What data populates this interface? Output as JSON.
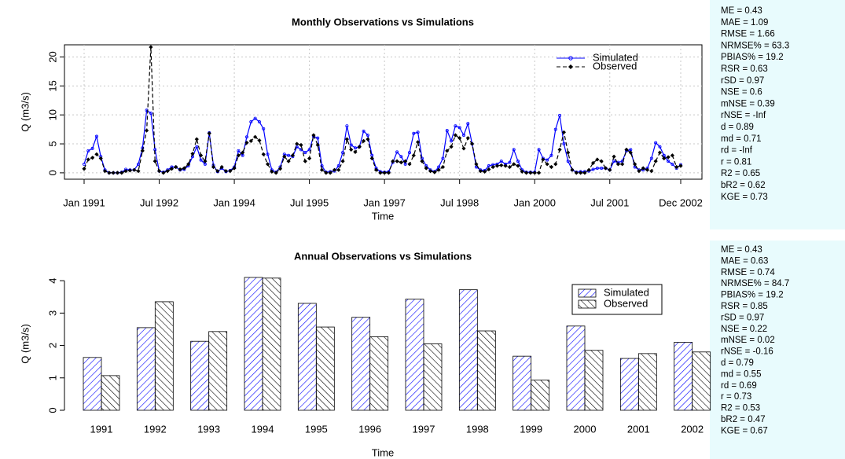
{
  "chart_data": [
    {
      "type": "line",
      "title": "Monthly Observations vs Simulations",
      "xlabel": "Time",
      "ylabel": "Q (m3/s)",
      "x": [
        "1991-01",
        "1991-02",
        "1991-03",
        "1991-04",
        "1991-05",
        "1991-06",
        "1991-07",
        "1991-08",
        "1991-09",
        "1991-10",
        "1991-11",
        "1991-12",
        "1992-01",
        "1992-02",
        "1992-03",
        "1992-04",
        "1992-05",
        "1992-06",
        "1992-07",
        "1992-08",
        "1992-09",
        "1992-10",
        "1992-11",
        "1992-12",
        "1993-01",
        "1993-02",
        "1993-03",
        "1993-04",
        "1993-05",
        "1993-06",
        "1993-07",
        "1993-08",
        "1993-09",
        "1993-10",
        "1993-11",
        "1993-12",
        "1994-01",
        "1994-02",
        "1994-03",
        "1994-04",
        "1994-05",
        "1994-06",
        "1994-07",
        "1994-08",
        "1994-09",
        "1994-10",
        "1994-11",
        "1994-12",
        "1995-01",
        "1995-02",
        "1995-03",
        "1995-04",
        "1995-05",
        "1995-06",
        "1995-07",
        "1995-08",
        "1995-09",
        "1995-10",
        "1995-11",
        "1995-12",
        "1996-01",
        "1996-02",
        "1996-03",
        "1996-04",
        "1996-05",
        "1996-06",
        "1996-07",
        "1996-08",
        "1996-09",
        "1996-10",
        "1996-11",
        "1996-12",
        "1997-01",
        "1997-02",
        "1997-03",
        "1997-04",
        "1997-05",
        "1997-06",
        "1997-07",
        "1997-08",
        "1997-09",
        "1997-10",
        "1997-11",
        "1997-12",
        "1998-01",
        "1998-02",
        "1998-03",
        "1998-04",
        "1998-05",
        "1998-06",
        "1998-07",
        "1998-08",
        "1998-09",
        "1998-10",
        "1998-11",
        "1998-12",
        "1999-01",
        "1999-02",
        "1999-03",
        "1999-04",
        "1999-05",
        "1999-06",
        "1999-07",
        "1999-08",
        "1999-09",
        "1999-10",
        "1999-11",
        "1999-12",
        "2000-01",
        "2000-02",
        "2000-03",
        "2000-04",
        "2000-05",
        "2000-06",
        "2000-07",
        "2000-08",
        "2000-09",
        "2000-10",
        "2000-11",
        "2000-12",
        "2001-01",
        "2001-02",
        "2001-03",
        "2001-04",
        "2001-05",
        "2001-06",
        "2001-07",
        "2001-08",
        "2001-09",
        "2001-10",
        "2001-11",
        "2001-12",
        "2002-01",
        "2002-02",
        "2002-03",
        "2002-04",
        "2002-05",
        "2002-06",
        "2002-07",
        "2002-08",
        "2002-09",
        "2002-10",
        "2002-11",
        "2002-12"
      ],
      "series": [
        {
          "name": "Simulated",
          "color": "#0000ff",
          "linestyle": "solid",
          "marker": "circle",
          "values": [
            1.5,
            3.8,
            4.2,
            6.3,
            2.8,
            0.5,
            0,
            0,
            0,
            0.1,
            0.6,
            0.5,
            0.5,
            1.5,
            4.3,
            10.8,
            10.3,
            4.0,
            0.3,
            0.1,
            0.5,
            1.0,
            1.0,
            0.5,
            0.6,
            1.2,
            2.8,
            4.5,
            2.2,
            1.5,
            6.9,
            1.3,
            0.2,
            0.8,
            0.2,
            0.4,
            1.0,
            3.8,
            3.0,
            6.2,
            8.8,
            9.4,
            8.8,
            7.6,
            3.2,
            0.5,
            0.1,
            1.0,
            3.2,
            3.0,
            2.8,
            4.5,
            4.0,
            3.5,
            4.0,
            6.3,
            6.0,
            1.2,
            0.1,
            0.2,
            0.3,
            1.2,
            3.5,
            8.1,
            4.8,
            4.3,
            4.5,
            7.2,
            6.5,
            3.0,
            0.8,
            0.2,
            0.1,
            0.2,
            1.8,
            3.6,
            2.8,
            1.5,
            3.5,
            6.8,
            7.0,
            2.5,
            1.2,
            0.5,
            0.2,
            1.0,
            2.5,
            7.3,
            5.5,
            8.1,
            7.8,
            6.5,
            8.5,
            5.0,
            1.0,
            0.5,
            0.4,
            1.2,
            1.4,
            1.5,
            2.0,
            1.5,
            1.8,
            4.0,
            2.0,
            0.5,
            0.1,
            0.1,
            0.1,
            4.0,
            2.5,
            2.2,
            3.0,
            7.5,
            9.9,
            5.0,
            2.0,
            0.5,
            0.1,
            0.2,
            0.2,
            0.3,
            0.6,
            0.8,
            0.8,
            0.8,
            0.5,
            2.0,
            1.8,
            2.0,
            3.8,
            4.0,
            1.0,
            0.5,
            0.5,
            0.8,
            2.5,
            5.2,
            4.5,
            3.0,
            2.0,
            1.5,
            0.8,
            1.4
          ]
        },
        {
          "name": "Observed",
          "color": "#000000",
          "linestyle": "dashed",
          "marker": "diamond",
          "values": [
            0.7,
            2.3,
            2.6,
            3.2,
            2.5,
            0.3,
            0,
            0,
            0,
            0,
            0.3,
            0.4,
            0.5,
            0.3,
            3.8,
            7.3,
            21.7,
            2.0,
            0.3,
            0,
            0.3,
            0.7,
            1.0,
            0.6,
            0.8,
            1.5,
            3.3,
            5.8,
            3.0,
            2.0,
            6.8,
            1.0,
            0.3,
            1.0,
            0.3,
            0.3,
            0.8,
            3.0,
            3.5,
            5.2,
            5.5,
            6.2,
            5.6,
            3.2,
            1.5,
            0.2,
            0,
            0.7,
            2.8,
            2.0,
            3.0,
            5.0,
            4.8,
            2.0,
            2.5,
            6.5,
            4.8,
            0.5,
            0,
            0,
            0.5,
            0.5,
            2.0,
            5.8,
            4.0,
            3.6,
            4.5,
            5.5,
            5.8,
            2.5,
            0.5,
            0,
            0,
            0,
            2.0,
            2.0,
            1.8,
            2.0,
            1.5,
            3.0,
            5.3,
            2.0,
            0.8,
            0.3,
            0.1,
            0.5,
            1.0,
            3.8,
            4.5,
            6.5,
            6.0,
            4.2,
            6.0,
            5.0,
            1.5,
            0.3,
            0.2,
            0.6,
            1.0,
            1.2,
            1.3,
            1.2,
            1.0,
            1.5,
            1.2,
            0.2,
            0,
            0,
            0,
            0,
            2.3,
            1.5,
            1.0,
            1.5,
            4.0,
            7.0,
            3.5,
            0.5,
            0,
            0,
            0,
            0.5,
            1.7,
            2.3,
            2.0,
            0.8,
            0.5,
            2.8,
            1.5,
            1.5,
            4.0,
            3.5,
            1.5,
            0.3,
            0.8,
            0.5,
            0.3,
            2.0,
            3.5,
            2.5,
            2.7,
            3.0,
            1.0,
            1.2
          ]
        }
      ],
      "xlim": [
        "1991-01",
        "2002-12"
      ],
      "xticks": [
        {
          "value": "1991-01",
          "label": "Jan 1991"
        },
        {
          "value": "1992-07",
          "label": "Jul 1992"
        },
        {
          "value": "1994-01",
          "label": "Jan 1994"
        },
        {
          "value": "1995-07",
          "label": "Jul 1995"
        },
        {
          "value": "1997-01",
          "label": "Jan 1997"
        },
        {
          "value": "1998-07",
          "label": "Jul 1998"
        },
        {
          "value": "2000-01",
          "label": "Jan 2000"
        },
        {
          "value": "2001-07",
          "label": "Jul 2001"
        },
        {
          "value": "2002-12",
          "label": "Dec 2002"
        }
      ],
      "ylim": [
        -1.1,
        22.1
      ],
      "yticks": [
        0,
        5,
        10,
        15,
        20
      ],
      "grid": true,
      "legend": "top-right",
      "annotations": [
        "ME = 0.43",
        "MAE = 1.09",
        "RMSE = 1.66",
        "NRMSE% = 63.3",
        "PBIAS% = 19.2",
        "RSR = 0.63",
        "rSD = 0.97",
        "NSE = 0.6",
        "mNSE = 0.39",
        "rNSE = -Inf",
        "d = 0.89",
        "md = 0.71",
        "rd = -Inf",
        "r = 0.81",
        "R2 = 0.65",
        "bR2 = 0.62",
        "KGE = 0.73"
      ]
    },
    {
      "type": "bar",
      "title": "Annual Observations vs Simulations",
      "xlabel": "Time",
      "ylabel": "Q (m3/s)",
      "categories": [
        "1991",
        "1992",
        "1993",
        "1994",
        "1995",
        "1996",
        "1997",
        "1998",
        "1999",
        "2000",
        "2001",
        "2002"
      ],
      "series": [
        {
          "name": "Simulated",
          "color": "#0000ff",
          "hatch": "/",
          "values": [
            1.63,
            2.55,
            2.13,
            4.1,
            3.3,
            2.87,
            3.43,
            3.72,
            1.67,
            2.6,
            1.6,
            2.1
          ]
        },
        {
          "name": "Observed",
          "color": "#000000",
          "hatch": "\\",
          "values": [
            1.07,
            3.35,
            2.43,
            4.08,
            2.57,
            2.27,
            2.05,
            2.45,
            0.93,
            1.85,
            1.75,
            1.8
          ]
        }
      ],
      "ylim": [
        0,
        4.1
      ],
      "yticks": [
        0,
        1,
        2,
        3,
        4
      ],
      "grid": false,
      "legend": "top-right",
      "annotations": [
        "ME = 0.43",
        "MAE = 0.63",
        "RMSE = 0.74",
        "NRMSE% = 84.7",
        "PBIAS% = 19.2",
        "RSR = 0.85",
        "rSD = 0.97",
        "NSE = 0.22",
        "mNSE = 0.02",
        "rNSE = -0.16",
        "d = 0.79",
        "md = 0.55",
        "rd = 0.69",
        "r = 0.73",
        "R2 = 0.53",
        "bR2 = 0.47",
        "KGE = 0.67"
      ]
    }
  ]
}
